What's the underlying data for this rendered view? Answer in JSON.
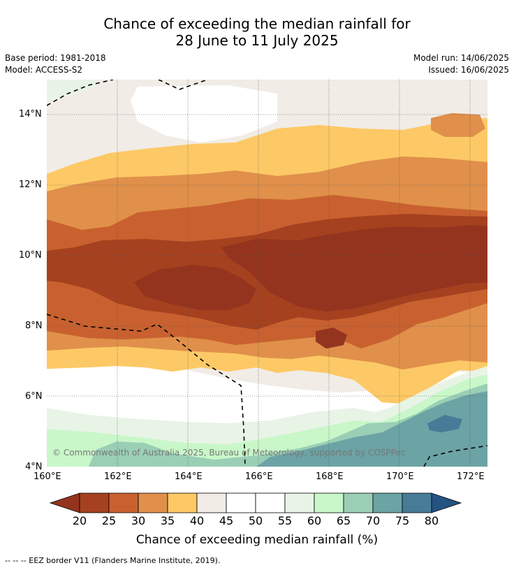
{
  "header": {
    "title_line1": "Chance of exceeding the median rainfall for",
    "title_line2": "28 June to 11 July 2025"
  },
  "meta": {
    "base_period": "Base period: 1981-2018",
    "model": "Model: ACCESS-S2",
    "model_run": "Model run: 14/06/2025",
    "issued": "Issued: 16/06/2025"
  },
  "map": {
    "copyright": "© Commonwealth of Australia 2025, Bureau of Meteorology, supported by COSPPac",
    "x_ticks": [
      "160°E",
      "162°E",
      "164°E",
      "166°E",
      "168°E",
      "170°E",
      "172°E"
    ],
    "y_ticks": [
      "14°N",
      "12°N",
      "10°N",
      "8°N",
      "6°N",
      "4°N"
    ],
    "lon_range": [
      160,
      172.5
    ],
    "lat_range": [
      4,
      15
    ]
  },
  "colorbar": {
    "labels": [
      "20",
      "25",
      "30",
      "35",
      "40",
      "45",
      "50",
      "55",
      "60",
      "65",
      "70",
      "75",
      "80"
    ],
    "colors": [
      "#a5411f",
      "#c8612f",
      "#e0904a",
      "#fdc966",
      "#f1ece6",
      "#ffffff",
      "#ffffff",
      "#e8f4e6",
      "#c9f7c9",
      "#9acfb6",
      "#6ca3a5",
      "#467c98"
    ],
    "under_color": "#94341e",
    "over_color": "#245382",
    "title": "Chance of exceeding median rainfall (%)"
  },
  "footnote": "--  --  -- EEZ border V11 (Flanders Marine Institute, 2019)."
}
